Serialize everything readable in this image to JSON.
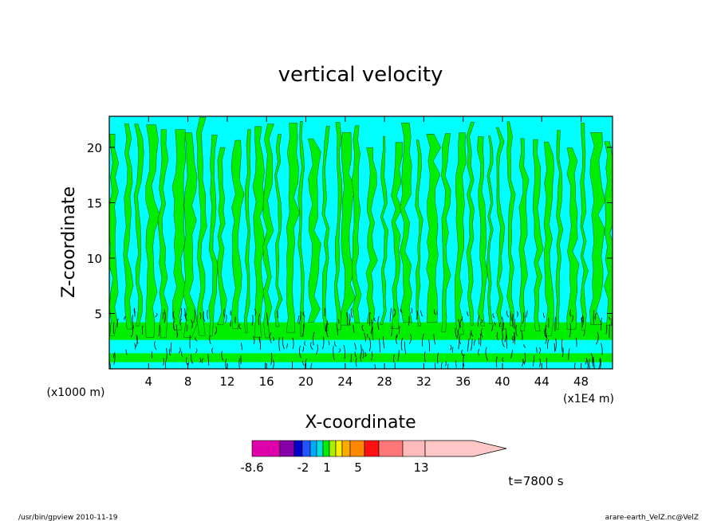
{
  "chart_data": {
    "type": "heatmap",
    "title": "vertical velocity",
    "xlabel": "X-coordinate",
    "ylabel": "Z-coordinate",
    "x_unit_left": "(x1000 m)",
    "x_unit_right": "(x1E4 m)",
    "xlim": [
      0,
      51.2
    ],
    "ylim": [
      0,
      22.8
    ],
    "x_ticks": [
      "4",
      "8",
      "12",
      "16",
      "20",
      "24",
      "28",
      "32",
      "36",
      "40",
      "44",
      "48"
    ],
    "y_ticks": [
      "5",
      "10",
      "15",
      "20"
    ],
    "time_label": "t=7800 s",
    "grid": false,
    "colorbar": {
      "colors": [
        "#dd00aa",
        "#8800aa",
        "#0000cc",
        "#2255ff",
        "#00aaff",
        "#00e0e0",
        "#00ee00",
        "#aaee00",
        "#ffee00",
        "#ffaa00",
        "#ff8800",
        "#ff1111",
        "#ff7777",
        "#ffbbbb",
        "#ffc8c8"
      ],
      "labels": [
        "-8.6",
        "-2",
        "1",
        "5",
        "13"
      ]
    },
    "field_colors": {
      "negative": "#00ffff",
      "positive": "#00ee00",
      "contour": "#000000"
    }
  },
  "footer": {
    "left": "/usr/bin/gpview   2010-11-19",
    "right": "arare-earth_VelZ.nc@VelZ"
  }
}
